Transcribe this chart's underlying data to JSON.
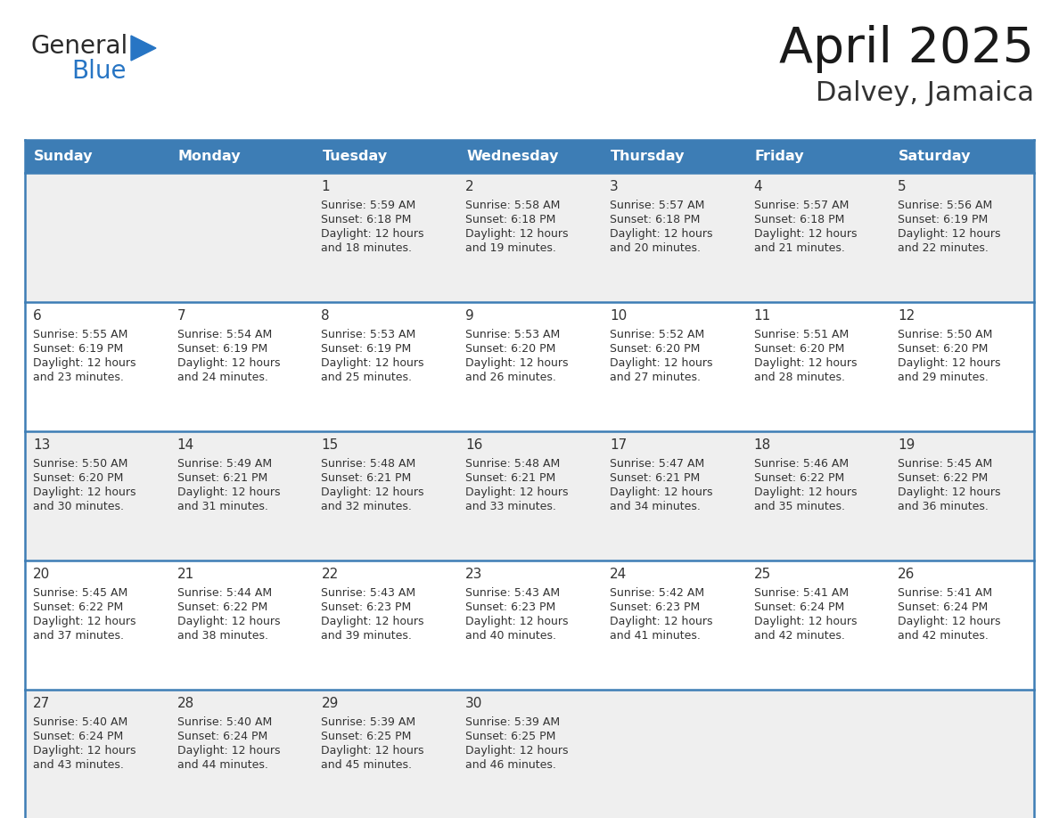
{
  "title": "April 2025",
  "subtitle": "Dalvey, Jamaica",
  "header_bg_color": "#3d7db5",
  "header_text_color": "#ffffff",
  "row_bg_odd": "#efefef",
  "row_bg_even": "#ffffff",
  "border_color": "#3d7db5",
  "text_color": "#333333",
  "days_of_week": [
    "Sunday",
    "Monday",
    "Tuesday",
    "Wednesday",
    "Thursday",
    "Friday",
    "Saturday"
  ],
  "calendar_data": [
    [
      {
        "day": "",
        "sunrise": "",
        "sunset": "",
        "daylight": ""
      },
      {
        "day": "",
        "sunrise": "",
        "sunset": "",
        "daylight": ""
      },
      {
        "day": "1",
        "sunrise": "5:59 AM",
        "sunset": "6:18 PM",
        "daylight": "and 18 minutes."
      },
      {
        "day": "2",
        "sunrise": "5:58 AM",
        "sunset": "6:18 PM",
        "daylight": "and 19 minutes."
      },
      {
        "day": "3",
        "sunrise": "5:57 AM",
        "sunset": "6:18 PM",
        "daylight": "and 20 minutes."
      },
      {
        "day": "4",
        "sunrise": "5:57 AM",
        "sunset": "6:18 PM",
        "daylight": "and 21 minutes."
      },
      {
        "day": "5",
        "sunrise": "5:56 AM",
        "sunset": "6:19 PM",
        "daylight": "and 22 minutes."
      }
    ],
    [
      {
        "day": "6",
        "sunrise": "5:55 AM",
        "sunset": "6:19 PM",
        "daylight": "and 23 minutes."
      },
      {
        "day": "7",
        "sunrise": "5:54 AM",
        "sunset": "6:19 PM",
        "daylight": "and 24 minutes."
      },
      {
        "day": "8",
        "sunrise": "5:53 AM",
        "sunset": "6:19 PM",
        "daylight": "and 25 minutes."
      },
      {
        "day": "9",
        "sunrise": "5:53 AM",
        "sunset": "6:20 PM",
        "daylight": "and 26 minutes."
      },
      {
        "day": "10",
        "sunrise": "5:52 AM",
        "sunset": "6:20 PM",
        "daylight": "and 27 minutes."
      },
      {
        "day": "11",
        "sunrise": "5:51 AM",
        "sunset": "6:20 PM",
        "daylight": "and 28 minutes."
      },
      {
        "day": "12",
        "sunrise": "5:50 AM",
        "sunset": "6:20 PM",
        "daylight": "and 29 minutes."
      }
    ],
    [
      {
        "day": "13",
        "sunrise": "5:50 AM",
        "sunset": "6:20 PM",
        "daylight": "and 30 minutes."
      },
      {
        "day": "14",
        "sunrise": "5:49 AM",
        "sunset": "6:21 PM",
        "daylight": "and 31 minutes."
      },
      {
        "day": "15",
        "sunrise": "5:48 AM",
        "sunset": "6:21 PM",
        "daylight": "and 32 minutes."
      },
      {
        "day": "16",
        "sunrise": "5:48 AM",
        "sunset": "6:21 PM",
        "daylight": "and 33 minutes."
      },
      {
        "day": "17",
        "sunrise": "5:47 AM",
        "sunset": "6:21 PM",
        "daylight": "and 34 minutes."
      },
      {
        "day": "18",
        "sunrise": "5:46 AM",
        "sunset": "6:22 PM",
        "daylight": "and 35 minutes."
      },
      {
        "day": "19",
        "sunrise": "5:45 AM",
        "sunset": "6:22 PM",
        "daylight": "and 36 minutes."
      }
    ],
    [
      {
        "day": "20",
        "sunrise": "5:45 AM",
        "sunset": "6:22 PM",
        "daylight": "and 37 minutes."
      },
      {
        "day": "21",
        "sunrise": "5:44 AM",
        "sunset": "6:22 PM",
        "daylight": "and 38 minutes."
      },
      {
        "day": "22",
        "sunrise": "5:43 AM",
        "sunset": "6:23 PM",
        "daylight": "and 39 minutes."
      },
      {
        "day": "23",
        "sunrise": "5:43 AM",
        "sunset": "6:23 PM",
        "daylight": "and 40 minutes."
      },
      {
        "day": "24",
        "sunrise": "5:42 AM",
        "sunset": "6:23 PM",
        "daylight": "and 41 minutes."
      },
      {
        "day": "25",
        "sunrise": "5:41 AM",
        "sunset": "6:24 PM",
        "daylight": "and 42 minutes."
      },
      {
        "day": "26",
        "sunrise": "5:41 AM",
        "sunset": "6:24 PM",
        "daylight": "and 42 minutes."
      }
    ],
    [
      {
        "day": "27",
        "sunrise": "5:40 AM",
        "sunset": "6:24 PM",
        "daylight": "and 43 minutes."
      },
      {
        "day": "28",
        "sunrise": "5:40 AM",
        "sunset": "6:24 PM",
        "daylight": "and 44 minutes."
      },
      {
        "day": "29",
        "sunrise": "5:39 AM",
        "sunset": "6:25 PM",
        "daylight": "and 45 minutes."
      },
      {
        "day": "30",
        "sunrise": "5:39 AM",
        "sunset": "6:25 PM",
        "daylight": "and 46 minutes."
      },
      {
        "day": "",
        "sunrise": "",
        "sunset": "",
        "daylight": ""
      },
      {
        "day": "",
        "sunrise": "",
        "sunset": "",
        "daylight": ""
      },
      {
        "day": "",
        "sunrise": "",
        "sunset": "",
        "daylight": ""
      }
    ]
  ],
  "logo_general_color": "#2a2a2a",
  "logo_blue_color": "#2775c4",
  "logo_triangle_color": "#2775c4",
  "title_color": "#1a1a1a",
  "subtitle_color": "#333333"
}
